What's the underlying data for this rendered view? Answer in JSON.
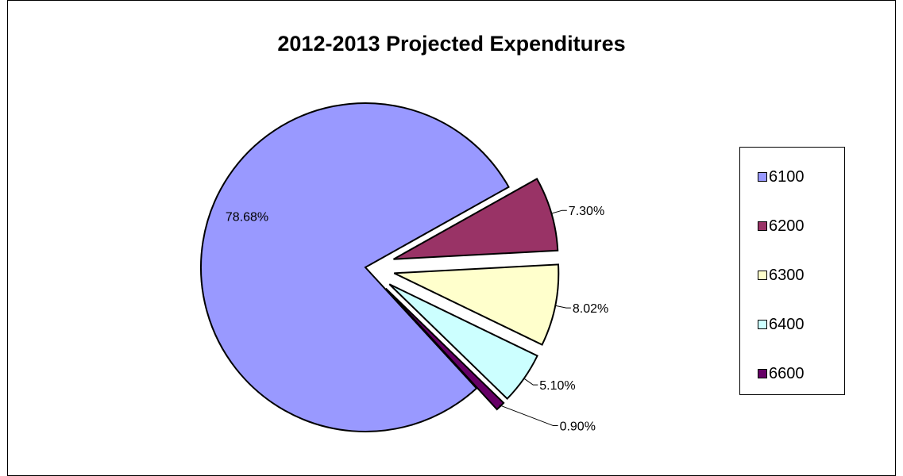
{
  "chart_data": {
    "type": "pie",
    "title": "2012-2013 Projected Expenditures",
    "legend_position": "right",
    "slices": [
      {
        "category": "6100",
        "value": 78.68,
        "label": "78.68%",
        "color": "#9999FF",
        "exploded": false
      },
      {
        "category": "6200",
        "value": 7.3,
        "label": "7.30%",
        "color": "#993366",
        "exploded": true
      },
      {
        "category": "6300",
        "value": 8.02,
        "label": "8.02%",
        "color": "#FFFFCC",
        "exploded": true
      },
      {
        "category": "6400",
        "value": 5.1,
        "label": "5.10%",
        "color": "#CCFFFF",
        "exploded": true
      },
      {
        "category": "6600",
        "value": 0.9,
        "label": "0.90%",
        "color": "#660066",
        "exploded": true
      }
    ]
  }
}
